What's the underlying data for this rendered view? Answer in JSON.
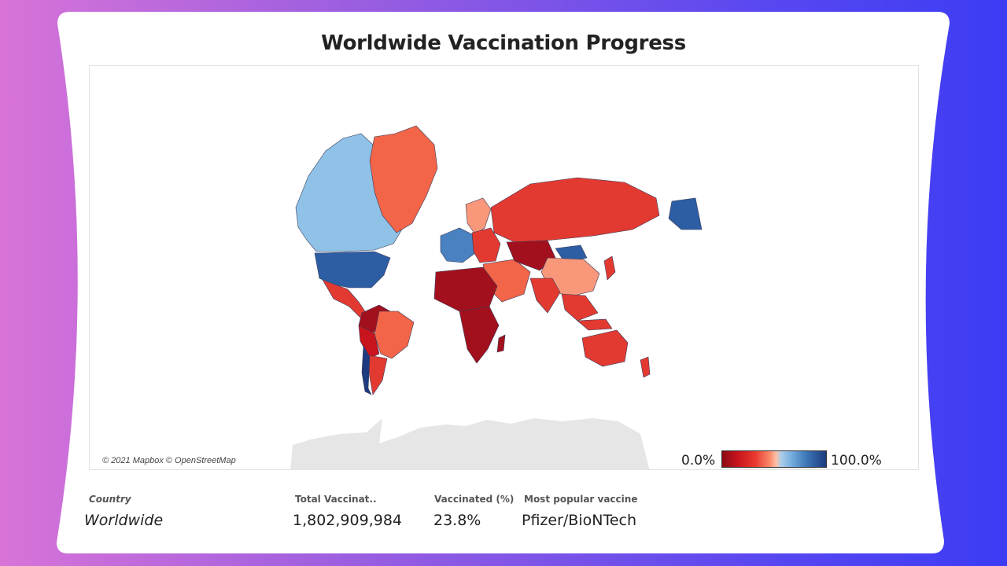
{
  "title": "Worldwide Vaccination Progress",
  "map": {
    "attribution": "© 2021 Mapbox © OpenStreetMap",
    "legend": {
      "min_label": "0.0%",
      "max_label": "100.0%"
    },
    "colors": {
      "very_low": "#a3101d",
      "low": "#e23a31",
      "medium_low": "#f26548",
      "medium": "#f8977a",
      "medium_high": "#8fc2e6",
      "high": "#4a82c1",
      "very_high": "#2d5ea4",
      "no_data": "#e6e6e6"
    }
  },
  "details": {
    "headers": {
      "country": "Country",
      "total": "Total Vaccinat..",
      "pct": "Vaccinated (%)",
      "vaccine": "Most popular vaccine"
    },
    "values": {
      "country": "Worldwide",
      "total": "1,802,909,984",
      "pct": "23.8%",
      "vaccine": "Pfizer/BioNTech"
    }
  }
}
